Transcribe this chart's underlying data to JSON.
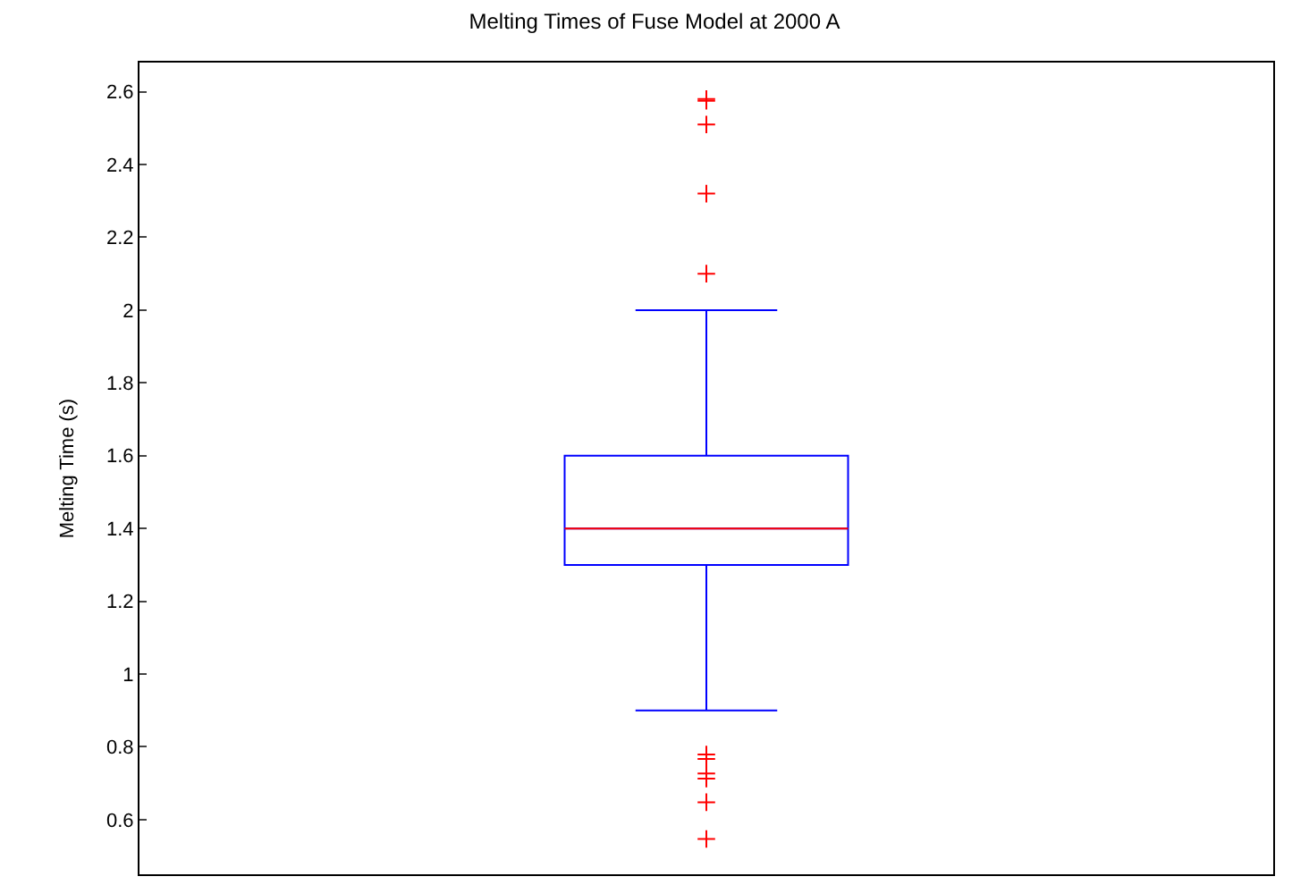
{
  "chart_data": {
    "type": "box",
    "title": "Melting Times of Fuse Model at 2000 A",
    "ylabel": "Melting Time (s)",
    "categories": [
      null
    ],
    "series": [
      {
        "color": "#0000ff",
        "boxes": [
          {
            "low": 0.9,
            "q1": 1.3,
            "median": 1.4,
            "q3": 1.6,
            "high": 2.0,
            "outliers": [
              2.58,
              2.575,
              2.51,
              2.32,
              2.1,
              0.779,
              0.767,
              0.727,
              0.713,
              0.648,
              0.547
            ]
          }
        ]
      }
    ],
    "ylim": [
      0.45,
      2.68
    ],
    "yticks": [
      0.6,
      0.8,
      1,
      1.2,
      1.4,
      1.6,
      1.8,
      2,
      2.2,
      2.4,
      2.6
    ],
    "tick_labels": "y"
  }
}
